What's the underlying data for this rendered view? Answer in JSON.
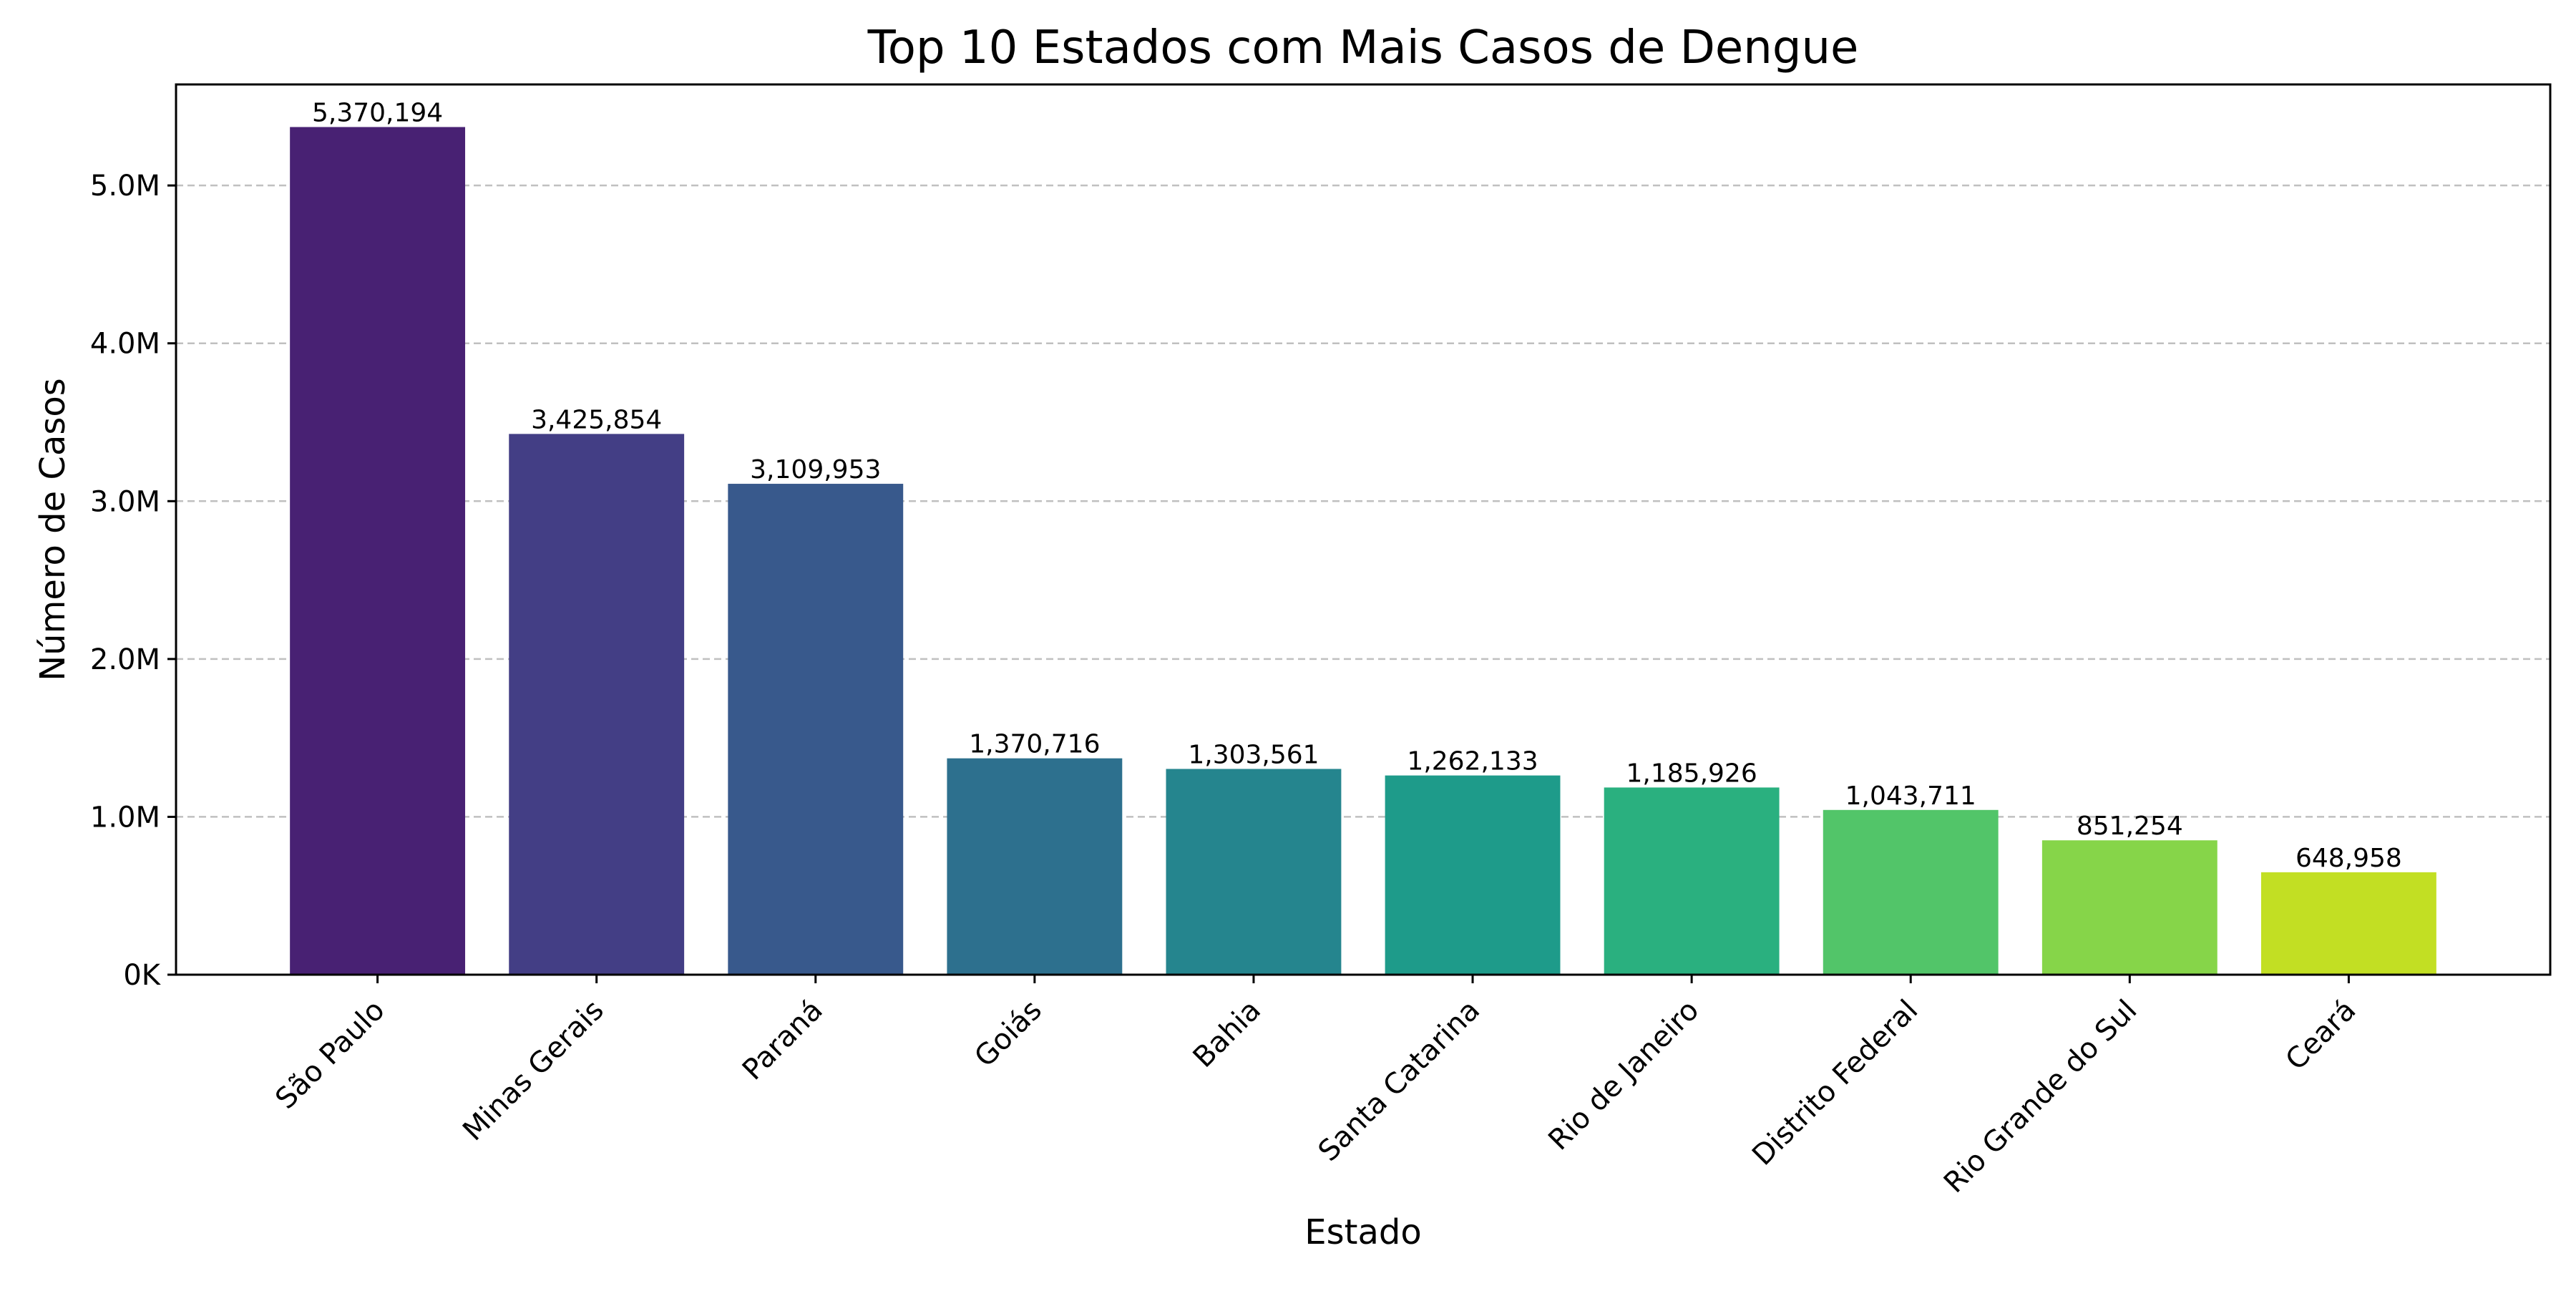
{
  "chart_data": {
    "type": "bar",
    "title": "Top 10 Estados com Mais Casos de Dengue",
    "xlabel": "Estado",
    "ylabel": "Número de Casos",
    "categories": [
      "São Paulo",
      "Minas Gerais",
      "Paraná",
      "Goiás",
      "Bahia",
      "Santa Catarina",
      "Rio de Janeiro",
      "Distrito Federal",
      "Rio Grande do Sul",
      "Ceará"
    ],
    "values": [
      5370194,
      3425854,
      3109953,
      1370716,
      1303561,
      1262133,
      1185926,
      1043711,
      851254,
      648958
    ],
    "value_labels": [
      "5,370,194",
      "3,425,854",
      "3,109,953",
      "1,370,716",
      "1,303,561",
      "1,262,133",
      "1,185,926",
      "1,043,711",
      "851,254",
      "648,958"
    ],
    "bar_colors": [
      "#482173",
      "#433e85",
      "#38598c",
      "#2d708e",
      "#25858e",
      "#1e9b8a",
      "#2ab07f",
      "#52c569",
      "#86d549",
      "#c2df23"
    ],
    "ylim": [
      0,
      5640000
    ],
    "yticks": [
      0,
      1000000,
      2000000,
      3000000,
      4000000,
      5000000
    ],
    "ytick_labels": [
      "0K",
      "1.0M",
      "2.0M",
      "3.0M",
      "4.0M",
      "5.0M"
    ],
    "grid": {
      "axis": "y",
      "style": "dashed",
      "color": "#c0c0c0"
    },
    "legend": "none"
  }
}
